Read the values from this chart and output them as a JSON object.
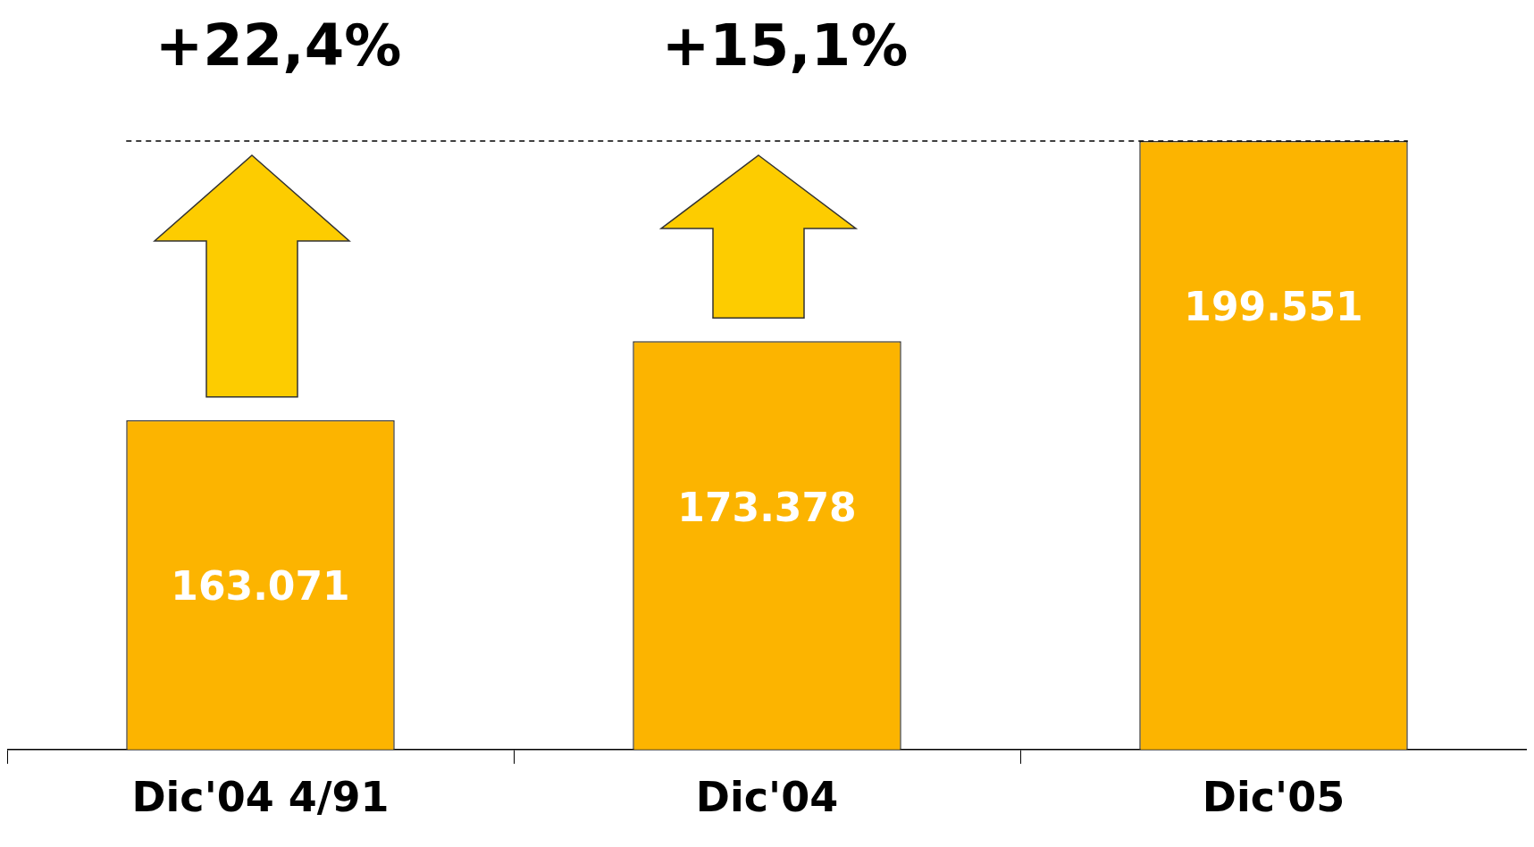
{
  "chart_data": {
    "type": "bar",
    "categories": [
      "Dic'04 4/91",
      "Dic'04",
      "Dic'05"
    ],
    "values": [
      163071,
      173378,
      199551
    ],
    "value_labels": [
      "163.071",
      "173.378",
      "199.551"
    ],
    "color": "#fcb400",
    "ylim": [
      120000,
      199551
    ],
    "tick_labels": "x",
    "grid": false,
    "legend": false,
    "annotations": [
      "+22,4%",
      "+15,1%"
    ],
    "ref_lines": [
      {
        "axis": "y",
        "value": 199551,
        "color": "#000000",
        "line_style": "dashed"
      }
    ]
  }
}
